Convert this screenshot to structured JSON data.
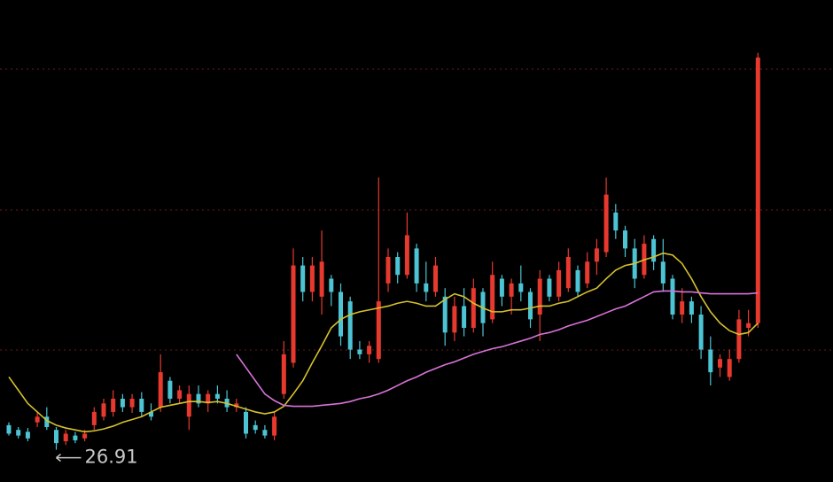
{
  "chart_data": {
    "type": "candlestick",
    "ylim": [
      26.7,
      31.5
    ],
    "up_color": "#e8392f",
    "down_color": "#4cc4d4",
    "open": [
      27.17,
      27.12,
      27.1,
      27.2,
      27.26,
      27.12,
      27.0,
      27.06,
      27.03,
      27.17,
      27.26,
      27.31,
      27.45,
      27.36,
      27.45,
      27.31,
      27.36,
      27.64,
      27.45,
      27.26,
      27.5,
      27.4,
      27.5,
      27.45,
      27.36,
      27.31,
      27.17,
      27.12,
      27.06,
      27.5,
      27.83,
      28.86,
      28.58,
      28.53,
      28.72,
      28.58,
      28.48,
      27.97,
      27.92,
      27.87,
      28.67,
      28.95,
      28.76,
      29.04,
      28.67,
      28.58,
      28.53,
      28.15,
      28.43,
      28.2,
      28.58,
      28.29,
      28.72,
      28.53,
      28.67,
      28.58,
      28.34,
      28.72,
      28.53,
      28.62,
      28.81,
      28.67,
      28.9,
      29.0,
      29.42,
      29.23,
      29.04,
      28.76,
      29.14,
      28.9,
      28.72,
      28.34,
      28.48,
      28.34,
      27.97,
      27.78,
      27.68,
      27.87,
      28.2,
      28.25
    ],
    "high": [
      27.2,
      27.15,
      27.14,
      27.31,
      27.36,
      27.15,
      27.12,
      27.1,
      27.12,
      27.36,
      27.45,
      27.54,
      27.5,
      27.5,
      27.52,
      27.4,
      27.92,
      27.68,
      27.59,
      27.59,
      27.59,
      27.54,
      27.59,
      27.54,
      27.45,
      27.36,
      27.22,
      27.17,
      27.31,
      28.06,
      29.04,
      28.95,
      28.95,
      29.23,
      28.76,
      28.67,
      28.53,
      28.06,
      28.06,
      29.79,
      29.04,
      29.0,
      29.42,
      29.09,
      28.9,
      28.95,
      28.62,
      28.53,
      28.62,
      28.72,
      28.62,
      28.9,
      28.76,
      28.72,
      28.86,
      28.62,
      28.81,
      28.76,
      28.9,
      29.04,
      28.86,
      29.0,
      29.14,
      29.79,
      29.51,
      29.28,
      29.14,
      29.18,
      29.18,
      29.14,
      28.76,
      28.62,
      28.53,
      28.43,
      28.11,
      27.92,
      27.97,
      28.39,
      28.39,
      31.11
    ],
    "low": [
      27.06,
      27.03,
      27.0,
      27.15,
      27.12,
      26.91,
      26.96,
      26.98,
      27.0,
      27.12,
      27.22,
      27.26,
      27.31,
      27.3,
      27.26,
      27.22,
      27.31,
      27.4,
      27.4,
      27.12,
      27.36,
      27.31,
      27.4,
      27.31,
      27.31,
      27.03,
      27.08,
      27.03,
      27.01,
      27.45,
      27.78,
      28.48,
      28.48,
      28.34,
      28.43,
      28.01,
      27.87,
      27.87,
      27.83,
      27.83,
      28.58,
      28.67,
      28.72,
      28.58,
      28.48,
      28.53,
      28.01,
      28.06,
      28.11,
      28.15,
      28.11,
      28.25,
      28.43,
      28.34,
      28.48,
      28.2,
      28.06,
      28.48,
      28.48,
      28.58,
      28.53,
      28.62,
      28.76,
      28.95,
      29.14,
      28.95,
      28.62,
      28.72,
      28.81,
      28.58,
      28.29,
      28.25,
      28.25,
      27.87,
      27.59,
      27.68,
      27.64,
      27.83,
      28.11,
      28.2
    ],
    "close": [
      27.08,
      27.06,
      27.03,
      27.26,
      27.15,
      26.98,
      27.08,
      27.01,
      27.08,
      27.31,
      27.4,
      27.45,
      27.36,
      27.45,
      27.31,
      27.26,
      27.73,
      27.45,
      27.54,
      27.5,
      27.4,
      27.5,
      27.45,
      27.36,
      27.4,
      27.08,
      27.12,
      27.06,
      27.26,
      27.92,
      28.86,
      28.58,
      28.86,
      28.9,
      28.58,
      28.11,
      27.97,
      27.92,
      28.01,
      28.48,
      28.95,
      28.76,
      29.18,
      28.67,
      28.58,
      28.86,
      28.15,
      28.43,
      28.2,
      28.62,
      28.25,
      28.76,
      28.53,
      28.67,
      28.58,
      28.29,
      28.72,
      28.53,
      28.81,
      28.95,
      28.58,
      28.9,
      29.04,
      29.61,
      29.23,
      29.04,
      28.72,
      29.09,
      28.9,
      28.67,
      28.34,
      28.48,
      28.34,
      27.97,
      27.73,
      27.87,
      27.87,
      28.29,
      28.25,
      31.06
    ],
    "lines": [
      {
        "color": "#d6c12b",
        "values": [
          27.68,
          27.54,
          27.4,
          27.31,
          27.22,
          27.17,
          27.14,
          27.12,
          27.1,
          27.11,
          27.13,
          27.16,
          27.2,
          27.23,
          27.26,
          27.31,
          27.36,
          27.38,
          27.4,
          27.42,
          27.42,
          27.41,
          27.42,
          27.4,
          27.37,
          27.34,
          27.31,
          27.29,
          27.31,
          27.37,
          27.5,
          27.64,
          27.83,
          28.01,
          28.2,
          28.29,
          28.34,
          28.37,
          28.39,
          28.41,
          28.43,
          28.46,
          28.48,
          28.46,
          28.43,
          28.43,
          28.5,
          28.56,
          28.53,
          28.46,
          28.41,
          28.37,
          28.37,
          28.39,
          28.39,
          28.41,
          28.43,
          28.43,
          28.46,
          28.48,
          28.53,
          28.58,
          28.62,
          28.72,
          28.81,
          28.86,
          28.88,
          28.92,
          28.95,
          28.99,
          28.97,
          28.88,
          28.72,
          28.53,
          28.37,
          28.25,
          28.17,
          28.13,
          28.15,
          28.25
        ]
      },
      {
        "color": "#d873d8",
        "values": [
          null,
          null,
          null,
          null,
          null,
          null,
          null,
          null,
          null,
          null,
          null,
          null,
          null,
          null,
          null,
          null,
          null,
          null,
          null,
          null,
          null,
          null,
          null,
          null,
          27.92,
          27.78,
          27.64,
          27.5,
          27.43,
          27.38,
          27.37,
          27.37,
          27.37,
          27.38,
          27.39,
          27.4,
          27.42,
          27.45,
          27.47,
          27.5,
          27.54,
          27.59,
          27.64,
          27.68,
          27.73,
          27.77,
          27.81,
          27.84,
          27.88,
          27.92,
          27.95,
          27.98,
          28.0,
          28.03,
          28.06,
          28.09,
          28.13,
          28.15,
          28.18,
          28.22,
          28.25,
          28.28,
          28.32,
          28.36,
          28.4,
          28.43,
          28.48,
          28.53,
          28.58,
          28.59,
          28.59,
          28.58,
          28.58,
          28.57,
          28.56,
          28.56,
          28.56,
          28.56,
          28.56,
          28.57
        ]
      }
    ],
    "low_label": "26.91"
  }
}
